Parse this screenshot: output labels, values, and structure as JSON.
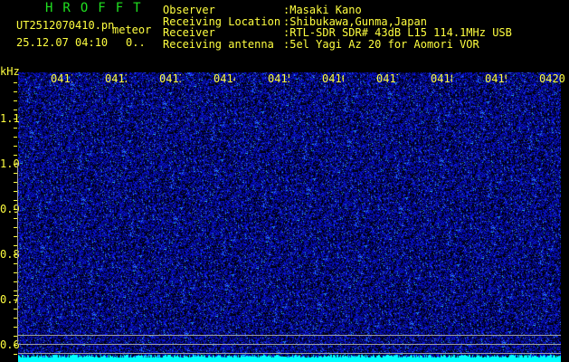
{
  "header": {
    "app_title": "HROFFT",
    "filename": "UT2512070410.pn",
    "mode": "meteor",
    "datetime": "25.12.07 04:10",
    "count": "0..",
    "fields": [
      {
        "label": "Observer",
        "value": ":Masaki Kano"
      },
      {
        "label": "Receiving Location",
        "value": ":Shibukawa,Gunma,Japan"
      },
      {
        "label": "Receiver",
        "value": ":RTL-SDR SDR# 43dB L15 114.1MHz USB"
      },
      {
        "label": "Receiving antenna",
        "value": ":5el Yagi Az 20 for Aomori VOR"
      }
    ]
  },
  "axis": {
    "unit": "kHz",
    "y_labels": [
      "1.1",
      "1.0",
      "0.9",
      "0.8",
      "0.7",
      "0.6"
    ],
    "y_values": [
      1.1,
      1.0,
      0.9,
      0.8,
      0.7,
      0.6
    ],
    "time_labels": [
      "0411",
      "0412",
      "0413",
      "0414",
      "0415",
      "0416",
      "0417",
      "0418",
      "0419",
      "0420"
    ]
  },
  "colors": {
    "text": "#ffff40",
    "title": "#20e020",
    "noise": "#2030ff",
    "baseline": "#00ffff"
  }
}
